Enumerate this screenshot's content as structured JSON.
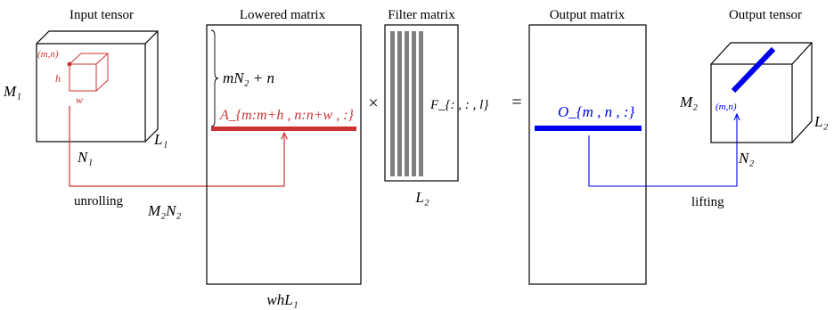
{
  "titles": {
    "input_tensor": "Input tensor",
    "lowered_matrix": "Lowered matrix",
    "filter_matrix": "Filter matrix",
    "output_matrix": "Output matrix",
    "output_tensor": "Output tensor"
  },
  "input_tensor": {
    "height_label": "M₁",
    "width_label": "N₁",
    "depth_label": "L₁",
    "corner_label": "(m,n)",
    "patch_h_label": "h",
    "patch_w_label": "w"
  },
  "lowered_matrix": {
    "rows_label": "M₂N₂",
    "cols_label": "whL₁",
    "offset_label": "mN₂ + n",
    "row_label": "A_{m:m+h , n:n+w , :}"
  },
  "operators": {
    "times": "×",
    "equals": "="
  },
  "filter_matrix": {
    "inner_label": "F_{: , : , l}",
    "cols_label": "L₂"
  },
  "output_matrix": {
    "row_label": "O_{m , n , :}"
  },
  "output_tensor": {
    "height_label": "M₂",
    "width_label": "N₂",
    "depth_label": "L₂",
    "position_label": "(m,n)"
  },
  "arrows": {
    "unrolling_label": "unrolling",
    "lifting_label": "lifting"
  },
  "colors": {
    "unrolling": "#cc3333",
    "lifting": "#0000ee",
    "filter_bars": "#808080",
    "stroke": "#000000"
  }
}
